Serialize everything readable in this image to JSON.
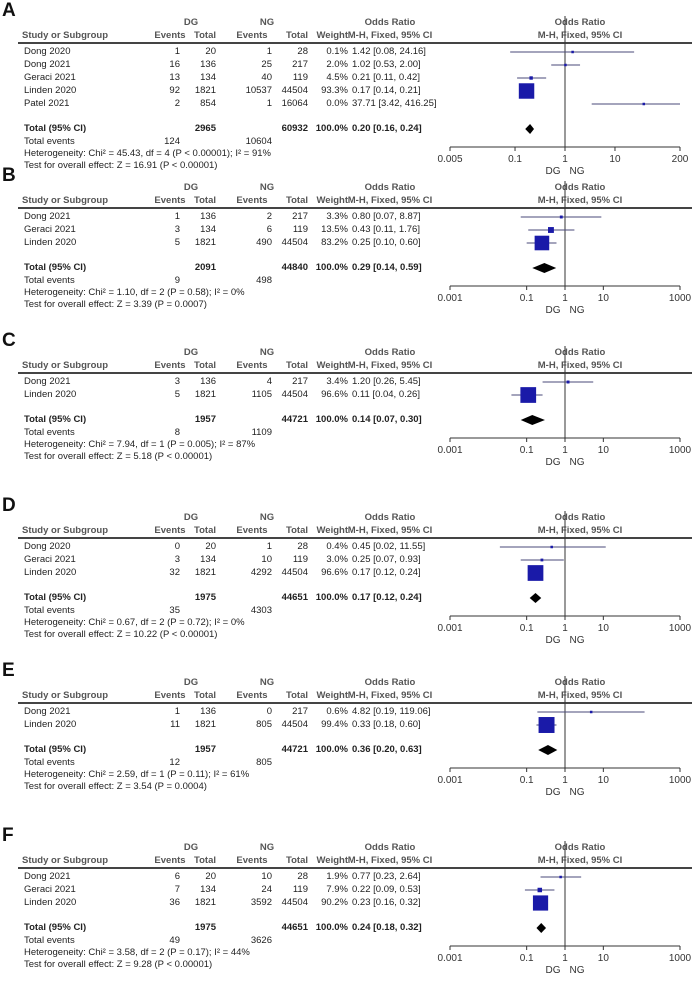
{
  "col_headers": {
    "study": "Study or Subgroup",
    "events": "Events",
    "total": "Total",
    "weight": "Weight",
    "dg": "DG",
    "ng": "NG",
    "or_title": "Odds Ratio",
    "or_method": "M-H, Fixed, 95% CI"
  },
  "axis_group_labels": {
    "left": "DG",
    "right": "NG"
  },
  "colors": {
    "square": "#1a1aa8",
    "line": "#4a4a7a",
    "diamond": "#000000"
  },
  "chart_data": [
    {
      "type": "forest",
      "label": "A",
      "ticks": [
        "0.005",
        "0.1",
        "1",
        "10",
        "200"
      ],
      "xlim": [
        0.005,
        200
      ],
      "studies": [
        {
          "name": "Dong 2020",
          "dg_events": "1",
          "dg_total": "20",
          "ng_events": "1",
          "ng_total": "28",
          "weight": "0.1%",
          "or_text": "1.42 [0.08, 24.16]",
          "or": 1.42,
          "lo": 0.08,
          "hi": 24.16,
          "w": 0.1
        },
        {
          "name": "Dong 2021",
          "dg_events": "16",
          "dg_total": "136",
          "ng_events": "25",
          "ng_total": "217",
          "weight": "2.0%",
          "or_text": "1.02 [0.53, 2.00]",
          "or": 1.02,
          "lo": 0.53,
          "hi": 2.0,
          "w": 2.0
        },
        {
          "name": "Geraci 2021",
          "dg_events": "13",
          "dg_total": "134",
          "ng_events": "40",
          "ng_total": "119",
          "weight": "4.5%",
          "or_text": "0.21 [0.11, 0.42]",
          "or": 0.21,
          "lo": 0.11,
          "hi": 0.42,
          "w": 4.5
        },
        {
          "name": "Linden 2020",
          "dg_events": "92",
          "dg_total": "1821",
          "ng_events": "10537",
          "ng_total": "44504",
          "weight": "93.3%",
          "or_text": "0.17 [0.14, 0.21]",
          "or": 0.17,
          "lo": 0.14,
          "hi": 0.21,
          "w": 93.3
        },
        {
          "name": "Patel 2021",
          "dg_events": "2",
          "dg_total": "854",
          "ng_events": "1",
          "ng_total": "16064",
          "weight": "0.0%",
          "or_text": "37.71 [3.42, 416.25]",
          "or": 37.71,
          "lo": 3.42,
          "hi": 416.25,
          "w": 0.0
        }
      ],
      "total": {
        "label": "Total (95% CI)",
        "dg_total": "2965",
        "ng_total": "60932",
        "weight": "100.0%",
        "or_text": "0.20 [0.16, 0.24]",
        "or": 0.2,
        "lo": 0.16,
        "hi": 0.24
      },
      "total_events": {
        "label": "Total events",
        "dg": "124",
        "ng": "10604"
      },
      "heterogeneity": "Heterogeneity: Chi² = 45.43, df = 4 (P < 0.00001); I² = 91%",
      "overall": "Test for overall effect: Z = 16.91 (P < 0.00001)"
    },
    {
      "type": "forest",
      "label": "B",
      "ticks": [
        "0.001",
        "0.1",
        "1",
        "10",
        "1000"
      ],
      "xlim": [
        0.001,
        1000
      ],
      "studies": [
        {
          "name": "Dong 2021",
          "dg_events": "1",
          "dg_total": "136",
          "ng_events": "2",
          "ng_total": "217",
          "weight": "3.3%",
          "or_text": "0.80 [0.07, 8.87]",
          "or": 0.8,
          "lo": 0.07,
          "hi": 8.87,
          "w": 3.3
        },
        {
          "name": "Geraci 2021",
          "dg_events": "3",
          "dg_total": "134",
          "ng_events": "6",
          "ng_total": "119",
          "weight": "13.5%",
          "or_text": "0.43 [0.11, 1.76]",
          "or": 0.43,
          "lo": 0.11,
          "hi": 1.76,
          "w": 13.5
        },
        {
          "name": "Linden 2020",
          "dg_events": "5",
          "dg_total": "1821",
          "ng_events": "490",
          "ng_total": "44504",
          "weight": "83.2%",
          "or_text": "0.25 [0.10, 0.60]",
          "or": 0.25,
          "lo": 0.1,
          "hi": 0.6,
          "w": 83.2
        }
      ],
      "total": {
        "label": "Total (95% CI)",
        "dg_total": "2091",
        "ng_total": "44840",
        "weight": "100.0%",
        "or_text": "0.29 [0.14, 0.59]",
        "or": 0.29,
        "lo": 0.14,
        "hi": 0.59
      },
      "total_events": {
        "label": "Total events",
        "dg": "9",
        "ng": "498"
      },
      "heterogeneity": "Heterogeneity: Chi² = 1.10, df = 2 (P = 0.58); I² = 0%",
      "overall": "Test for overall effect: Z = 3.39 (P = 0.0007)"
    },
    {
      "type": "forest",
      "label": "C",
      "ticks": [
        "0.001",
        "0.1",
        "1",
        "10",
        "1000"
      ],
      "xlim": [
        0.001,
        1000
      ],
      "studies": [
        {
          "name": "Dong 2021",
          "dg_events": "3",
          "dg_total": "136",
          "ng_events": "4",
          "ng_total": "217",
          "weight": "3.4%",
          "or_text": "1.20 [0.26, 5.45]",
          "or": 1.2,
          "lo": 0.26,
          "hi": 5.45,
          "w": 3.4
        },
        {
          "name": "Linden 2020",
          "dg_events": "5",
          "dg_total": "1821",
          "ng_events": "1105",
          "ng_total": "44504",
          "weight": "96.6%",
          "or_text": "0.11 [0.04, 0.26]",
          "or": 0.11,
          "lo": 0.04,
          "hi": 0.26,
          "w": 96.6
        }
      ],
      "total": {
        "label": "Total (95% CI)",
        "dg_total": "1957",
        "ng_total": "44721",
        "weight": "100.0%",
        "or_text": "0.14 [0.07, 0.30]",
        "or": 0.14,
        "lo": 0.07,
        "hi": 0.3
      },
      "total_events": {
        "label": "Total events",
        "dg": "8",
        "ng": "1109"
      },
      "heterogeneity": "Heterogeneity: Chi² = 7.94, df = 1 (P = 0.005); I² = 87%",
      "overall": "Test for overall effect: Z = 5.18 (P < 0.00001)"
    },
    {
      "type": "forest",
      "label": "D",
      "ticks": [
        "0.001",
        "0.1",
        "1",
        "10",
        "1000"
      ],
      "xlim": [
        0.001,
        1000
      ],
      "studies": [
        {
          "name": "Dong 2020",
          "dg_events": "0",
          "dg_total": "20",
          "ng_events": "1",
          "ng_total": "28",
          "weight": "0.4%",
          "or_text": "0.45 [0.02, 11.55]",
          "or": 0.45,
          "lo": 0.02,
          "hi": 11.55,
          "w": 0.4
        },
        {
          "name": "Geraci 2021",
          "dg_events": "3",
          "dg_total": "134",
          "ng_events": "10",
          "ng_total": "119",
          "weight": "3.0%",
          "or_text": "0.25 [0.07, 0.93]",
          "or": 0.25,
          "lo": 0.07,
          "hi": 0.93,
          "w": 3.0
        },
        {
          "name": "Linden 2020",
          "dg_events": "32",
          "dg_total": "1821",
          "ng_events": "4292",
          "ng_total": "44504",
          "weight": "96.6%",
          "or_text": "0.17 [0.12, 0.24]",
          "or": 0.17,
          "lo": 0.12,
          "hi": 0.24,
          "w": 96.6
        }
      ],
      "total": {
        "label": "Total (95% CI)",
        "dg_total": "1975",
        "ng_total": "44651",
        "weight": "100.0%",
        "or_text": "0.17 [0.12, 0.24]",
        "or": 0.17,
        "lo": 0.12,
        "hi": 0.24
      },
      "total_events": {
        "label": "Total events",
        "dg": "35",
        "ng": "4303"
      },
      "heterogeneity": "Heterogeneity: Chi² = 0.67, df = 2 (P = 0.72); I² = 0%",
      "overall": "Test for overall effect: Z = 10.22 (P < 0.00001)"
    },
    {
      "type": "forest",
      "label": "E",
      "ticks": [
        "0.001",
        "0.1",
        "1",
        "10",
        "1000"
      ],
      "xlim": [
        0.001,
        1000
      ],
      "studies": [
        {
          "name": "Dong 2021",
          "dg_events": "1",
          "dg_total": "136",
          "ng_events": "0",
          "ng_total": "217",
          "weight": "0.6%",
          "or_text": "4.82 [0.19, 119.06]",
          "or": 4.82,
          "lo": 0.19,
          "hi": 119.06,
          "w": 0.6
        },
        {
          "name": "Linden 2020",
          "dg_events": "11",
          "dg_total": "1821",
          "ng_events": "805",
          "ng_total": "44504",
          "weight": "99.4%",
          "or_text": "0.33 [0.18, 0.60]",
          "or": 0.33,
          "lo": 0.18,
          "hi": 0.6,
          "w": 99.4
        }
      ],
      "total": {
        "label": "Total (95% CI)",
        "dg_total": "1957",
        "ng_total": "44721",
        "weight": "100.0%",
        "or_text": "0.36 [0.20, 0.63]",
        "or": 0.36,
        "lo": 0.2,
        "hi": 0.63
      },
      "total_events": {
        "label": "Total events",
        "dg": "12",
        "ng": "805"
      },
      "heterogeneity": "Heterogeneity: Chi² = 2.59, df = 1 (P = 0.11); I² = 61%",
      "overall": "Test for overall effect: Z = 3.54 (P = 0.0004)"
    },
    {
      "type": "forest",
      "label": "F",
      "ticks": [
        "0.001",
        "0.1",
        "1",
        "10",
        "1000"
      ],
      "xlim": [
        0.001,
        1000
      ],
      "studies": [
        {
          "name": "Dong 2021",
          "dg_events": "6",
          "dg_total": "20",
          "ng_events": "10",
          "ng_total": "28",
          "weight": "1.9%",
          "or_text": "0.77 [0.23, 2.64]",
          "or": 0.77,
          "lo": 0.23,
          "hi": 2.64,
          "w": 1.9
        },
        {
          "name": "Geraci 2021",
          "dg_events": "7",
          "dg_total": "134",
          "ng_events": "24",
          "ng_total": "119",
          "weight": "7.9%",
          "or_text": "0.22 [0.09, 0.53]",
          "or": 0.22,
          "lo": 0.09,
          "hi": 0.53,
          "w": 7.9
        },
        {
          "name": "Linden 2020",
          "dg_events": "36",
          "dg_total": "1821",
          "ng_events": "3592",
          "ng_total": "44504",
          "weight": "90.2%",
          "or_text": "0.23 [0.16, 0.32]",
          "or": 0.23,
          "lo": 0.16,
          "hi": 0.32,
          "w": 90.2
        }
      ],
      "total": {
        "label": "Total (95% CI)",
        "dg_total": "1975",
        "ng_total": "44651",
        "weight": "100.0%",
        "or_text": "0.24 [0.18, 0.32]",
        "or": 0.24,
        "lo": 0.18,
        "hi": 0.32
      },
      "total_events": {
        "label": "Total events",
        "dg": "49",
        "ng": "3626"
      },
      "heterogeneity": "Heterogeneity: Chi² = 3.58, df = 2 (P = 0.17); I² = 44%",
      "overall": "Test for overall effect: Z = 9.28 (P < 0.00001)"
    }
  ]
}
